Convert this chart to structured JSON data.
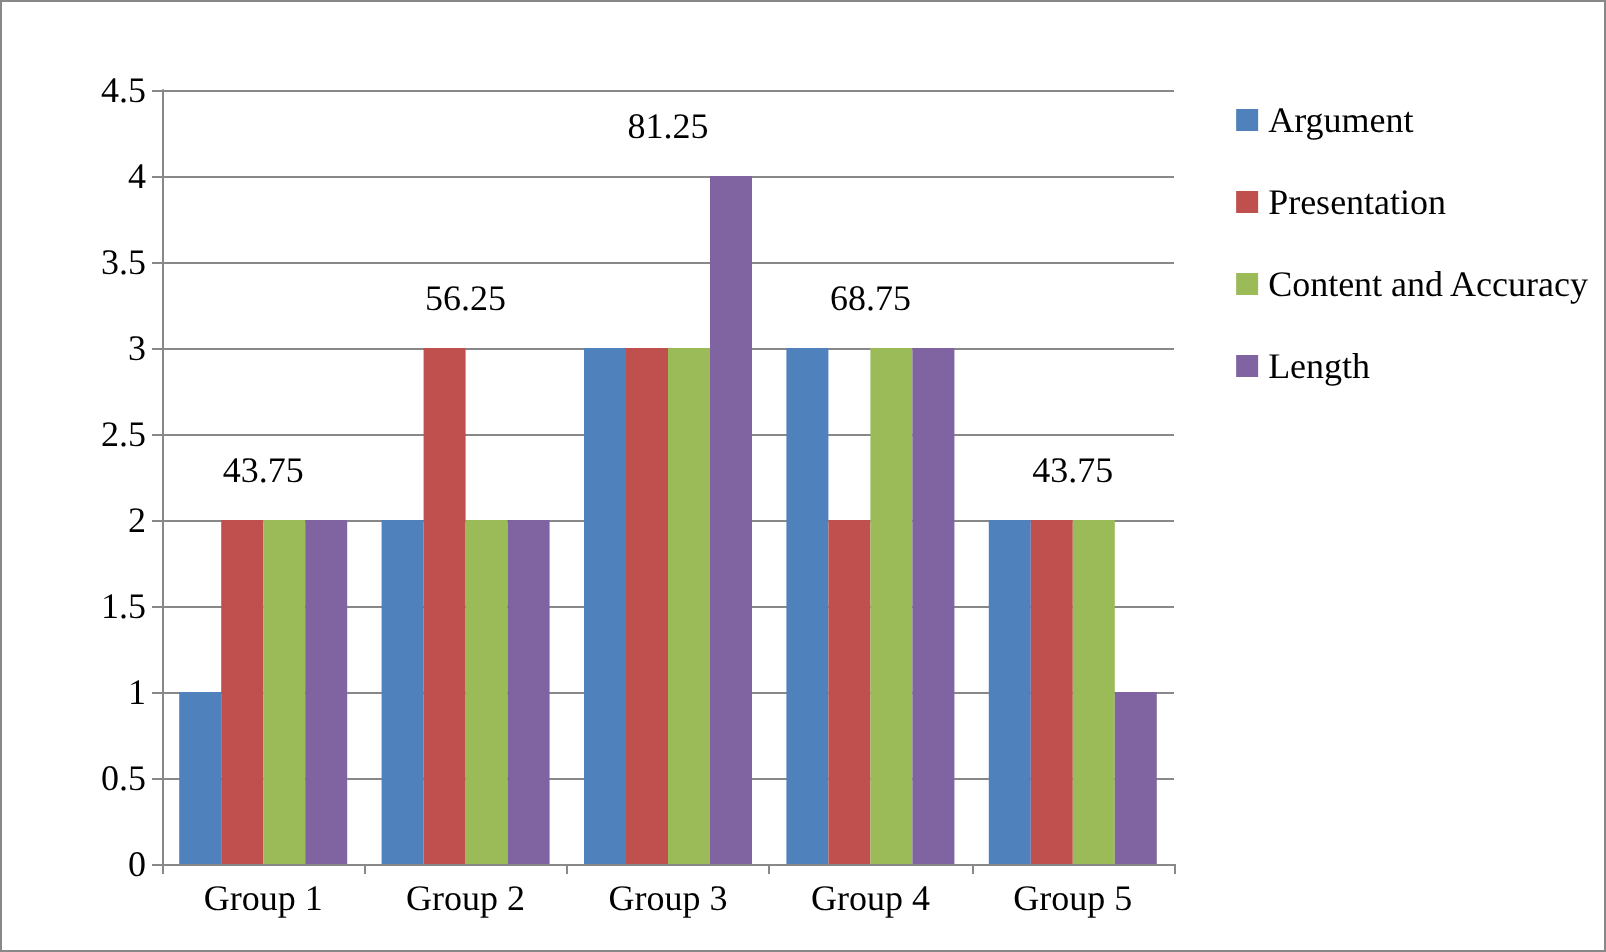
{
  "chart_data": {
    "type": "bar",
    "categories": [
      "Group 1",
      "Group 2",
      "Group 3",
      "Group 4",
      "Group 5"
    ],
    "series": [
      {
        "name": "Argument",
        "color": "#4f81bd",
        "values": [
          1,
          2,
          3,
          3,
          2
        ]
      },
      {
        "name": "Presentation",
        "color": "#c0504d",
        "values": [
          2,
          3,
          3,
          2,
          2
        ]
      },
      {
        "name": "Content and Accuracy",
        "color": "#9bbb59",
        "values": [
          2,
          2,
          3,
          3,
          2
        ]
      },
      {
        "name": "Length",
        "color": "#8064a2",
        "values": [
          2,
          2,
          4,
          3,
          1
        ]
      }
    ],
    "ylim": [
      0,
      4.5
    ],
    "yticks": [
      0,
      0.5,
      1,
      1.5,
      2,
      2.5,
      3,
      3.5,
      4,
      4.5
    ],
    "grid": "y",
    "legend": "right",
    "annotations": [
      "43.75",
      "56.25",
      "81.25",
      "68.75",
      "43.75"
    ]
  }
}
